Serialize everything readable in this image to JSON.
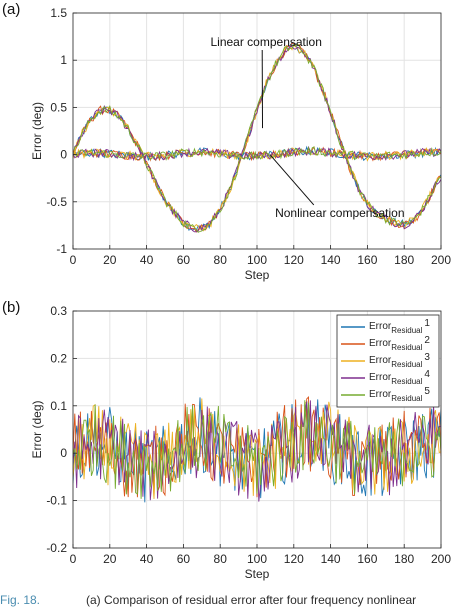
{
  "chart_data": [
    {
      "type": "line",
      "panel_label": "(a)",
      "title": "",
      "xlabel": "Step",
      "ylabel": "Error (deg)",
      "xlim": [
        0,
        200
      ],
      "ylim": [
        -1,
        1.5
      ],
      "xticks": [
        0,
        20,
        40,
        60,
        80,
        100,
        120,
        140,
        160,
        180,
        200
      ],
      "yticks": [
        -1,
        -0.5,
        0,
        0.5,
        1,
        1.5
      ],
      "ytick_labels": [
        "-1",
        "-0.5",
        "0",
        "0.5",
        "1",
        "1.5"
      ],
      "grid": true,
      "annotations": [
        {
          "text": "Linear compensation",
          "x": 105,
          "y": 1.15,
          "arrow_to": [
            103,
            0.28
          ]
        },
        {
          "text": "Nonlinear compensation",
          "x": 145,
          "y": -0.66,
          "arrow_to": [
            107,
            0.0
          ]
        }
      ],
      "series_colors": [
        "#1f77b4",
        "#d95319",
        "#edb120",
        "#7e2f8e",
        "#77ac30"
      ],
      "series": [
        {
          "group": "Linear compensation",
          "x": [
            0,
            5,
            10,
            15,
            20,
            25,
            30,
            35,
            40,
            45,
            50,
            55,
            60,
            65,
            70,
            75,
            80,
            85,
            90,
            95,
            100,
            105,
            110,
            115,
            120,
            125,
            130,
            135,
            140,
            145,
            150,
            155,
            160,
            165,
            170,
            175,
            180,
            185,
            190,
            195,
            200
          ],
          "y": [
            0.0,
            0.22,
            0.38,
            0.47,
            0.47,
            0.4,
            0.27,
            0.1,
            -0.1,
            -0.3,
            -0.48,
            -0.62,
            -0.72,
            -0.78,
            -0.78,
            -0.72,
            -0.58,
            -0.38,
            -0.12,
            0.18,
            0.48,
            0.75,
            0.95,
            1.1,
            1.15,
            1.1,
            0.95,
            0.72,
            0.45,
            0.15,
            -0.12,
            -0.35,
            -0.52,
            -0.62,
            -0.68,
            -0.72,
            -0.74,
            -0.7,
            -0.58,
            -0.4,
            -0.22
          ]
        },
        {
          "group": "Nonlinear compensation",
          "x": [
            0,
            10,
            20,
            30,
            40,
            50,
            60,
            70,
            80,
            90,
            100,
            110,
            120,
            130,
            140,
            150,
            160,
            170,
            180,
            190,
            200
          ],
          "y": [
            0.0,
            0.02,
            0.01,
            -0.01,
            -0.02,
            -0.01,
            0.02,
            0.03,
            0.01,
            -0.01,
            -0.02,
            0.0,
            0.03,
            0.04,
            0.02,
            0.0,
            -0.02,
            -0.01,
            0.0,
            0.02,
            0.03
          ]
        }
      ]
    },
    {
      "type": "line",
      "panel_label": "(b)",
      "title": "",
      "xlabel": "Step",
      "ylabel": "Error (deg)",
      "xlim": [
        0,
        200
      ],
      "ylim": [
        -0.2,
        0.3
      ],
      "xticks": [
        0,
        20,
        40,
        60,
        80,
        100,
        120,
        140,
        160,
        180,
        200
      ],
      "yticks": [
        -0.2,
        -0.1,
        0,
        0.1,
        0.2,
        0.3
      ],
      "ytick_labels": [
        "-0.2",
        "-0.1",
        "0",
        "0.1",
        "0.2",
        "0.3"
      ],
      "grid": true,
      "legend_placement": "top-right",
      "series": [
        {
          "name_main": "Error",
          "name_sub": "Residual",
          "name_num": "1",
          "color": "#1f77b4",
          "x": [
            0,
            10,
            20,
            30,
            40,
            50,
            60,
            70,
            80,
            90,
            100,
            110,
            120,
            130,
            140,
            150,
            160,
            170,
            180,
            190,
            200
          ],
          "y": [
            0.0,
            0.03,
            0.02,
            -0.01,
            -0.03,
            -0.02,
            0.02,
            0.04,
            0.01,
            -0.02,
            -0.03,
            0.0,
            0.03,
            0.05,
            0.02,
            -0.01,
            -0.03,
            -0.02,
            0.0,
            0.02,
            0.03
          ]
        },
        {
          "name_main": "Error",
          "name_sub": "Residual",
          "name_num": "2",
          "color": "#d95319",
          "x": [
            0,
            10,
            20,
            30,
            40,
            50,
            60,
            70,
            80,
            90,
            100,
            110,
            120,
            130,
            140,
            150,
            160,
            170,
            180,
            190,
            200
          ],
          "y": [
            0.01,
            0.02,
            0.0,
            -0.02,
            -0.03,
            -0.01,
            0.03,
            0.03,
            0.0,
            -0.02,
            -0.02,
            0.01,
            0.04,
            0.04,
            0.01,
            -0.02,
            -0.03,
            -0.01,
            0.01,
            0.02,
            0.02
          ]
        },
        {
          "name_main": "Error",
          "name_sub": "Residual",
          "name_num": "3",
          "color": "#edb120",
          "x": [
            0,
            10,
            20,
            30,
            40,
            50,
            60,
            70,
            80,
            90,
            100,
            110,
            120,
            130,
            140,
            150,
            160,
            170,
            180,
            190,
            200
          ],
          "y": [
            -0.01,
            0.03,
            0.01,
            -0.01,
            -0.02,
            -0.02,
            0.02,
            0.04,
            0.02,
            -0.01,
            -0.03,
            0.0,
            0.03,
            0.05,
            0.03,
            0.0,
            -0.02,
            -0.02,
            0.0,
            0.01,
            0.02
          ]
        },
        {
          "name_main": "Error",
          "name_sub": "Residual",
          "name_num": "4",
          "color": "#7e2f8e",
          "x": [
            0,
            10,
            20,
            30,
            40,
            50,
            60,
            70,
            80,
            90,
            100,
            110,
            120,
            130,
            140,
            150,
            160,
            170,
            180,
            190,
            200
          ],
          "y": [
            0.0,
            0.02,
            0.02,
            0.0,
            -0.03,
            -0.02,
            0.01,
            0.03,
            0.01,
            -0.01,
            -0.03,
            -0.01,
            0.02,
            0.04,
            0.02,
            -0.01,
            -0.02,
            -0.02,
            0.0,
            0.03,
            0.04
          ]
        },
        {
          "name_main": "Error",
          "name_sub": "Residual",
          "name_num": "5",
          "color": "#77ac30",
          "x": [
            0,
            10,
            20,
            30,
            40,
            50,
            60,
            70,
            80,
            90,
            100,
            110,
            120,
            130,
            140,
            150,
            160,
            170,
            180,
            190,
            200
          ],
          "y": [
            0.01,
            0.03,
            0.01,
            -0.01,
            -0.02,
            -0.01,
            0.02,
            0.03,
            0.02,
            -0.02,
            -0.02,
            0.0,
            0.03,
            0.04,
            0.02,
            0.0,
            -0.03,
            -0.01,
            0.01,
            0.01,
            0.02
          ]
        }
      ]
    }
  ],
  "caption": {
    "prefix": "Fig. 18.",
    "text": "(a) Comparison of residual error after four frequency nonlinear"
  }
}
